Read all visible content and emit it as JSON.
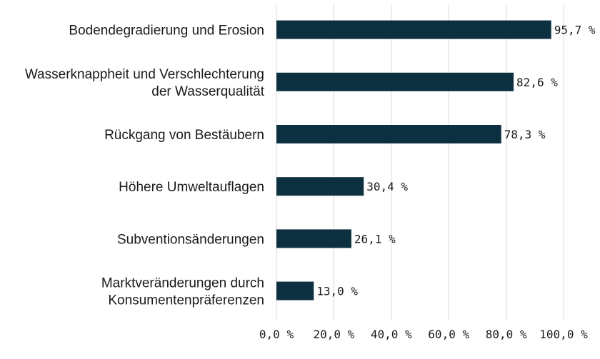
{
  "chart_data": {
    "type": "bar",
    "orientation": "horizontal",
    "categories": [
      [
        "Bodendegradierung und Erosion"
      ],
      [
        "Wasserknappheit und Verschlechterung",
        "der Wasserqualität"
      ],
      [
        "Rückgang von Bestäubern"
      ],
      [
        "Höhere Umweltauflagen"
      ],
      [
        "Subventionsänderungen"
      ],
      [
        "Marktveränderungen durch",
        "Konsumentenpräferenzen"
      ]
    ],
    "values": [
      95.7,
      82.6,
      78.3,
      30.4,
      26.1,
      13.0
    ],
    "value_labels": [
      "95,7 %",
      "82,6 %",
      "78,3 %",
      "30,4 %",
      "26,1 %",
      "13,0 %"
    ],
    "xlim": [
      0,
      100
    ],
    "xticks": [
      0,
      20,
      40,
      60,
      80,
      100
    ],
    "xtick_labels": [
      "0,0 %",
      "20,0 %",
      "40,0 %",
      "60,0 %",
      "80,0 %",
      "100,0 %"
    ],
    "title": "",
    "xlabel": "",
    "ylabel": "",
    "grid": "vertical",
    "legend": "none",
    "colors": {
      "bar": "#0d3040",
      "grid": "#d9d9d9",
      "text": "#1a1a1a"
    }
  }
}
